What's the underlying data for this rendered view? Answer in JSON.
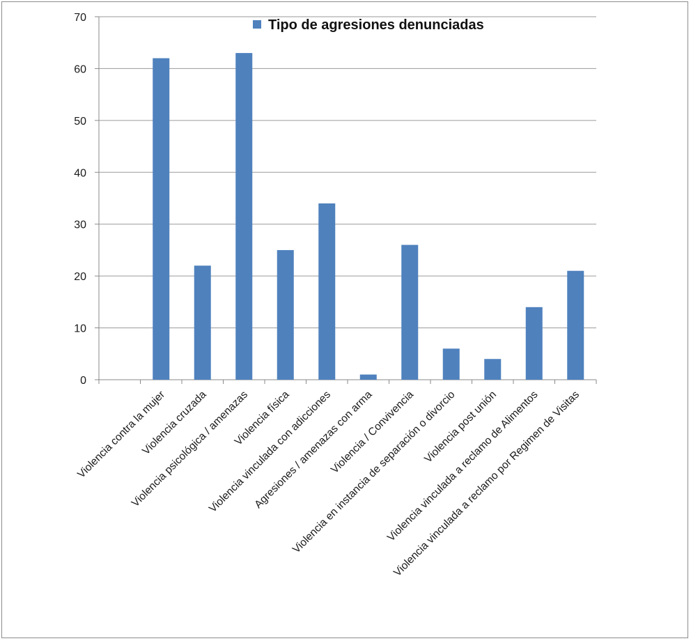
{
  "chart_data": {
    "type": "bar",
    "categories": [
      "Violencia contra la mujer",
      "Violencia cruzada",
      "Violencia psicológica / amenazas",
      "Violencia física",
      "Violencia vinculada con adicciones",
      "Agresiones / amenazas con arma",
      "Violencia / Convivencia",
      "Violencia en instancia de separación o divorcio",
      "Violencia post unión",
      "Violencia vinculada a reclamo de Alimentos",
      "Violencia vinculada a  reclamo por Regimen de Visitas"
    ],
    "series": [
      {
        "name": "Tipo de agresiones denunciadas",
        "values": [
          62,
          22,
          63,
          25,
          34,
          1,
          26,
          6,
          4,
          14,
          21
        ]
      }
    ],
    "ylim": [
      0,
      70
    ],
    "yticks": [
      0,
      10,
      20,
      30,
      40,
      50,
      60,
      70
    ],
    "grid": true,
    "legend_position": "top",
    "bar_color": "#4f81bd"
  }
}
